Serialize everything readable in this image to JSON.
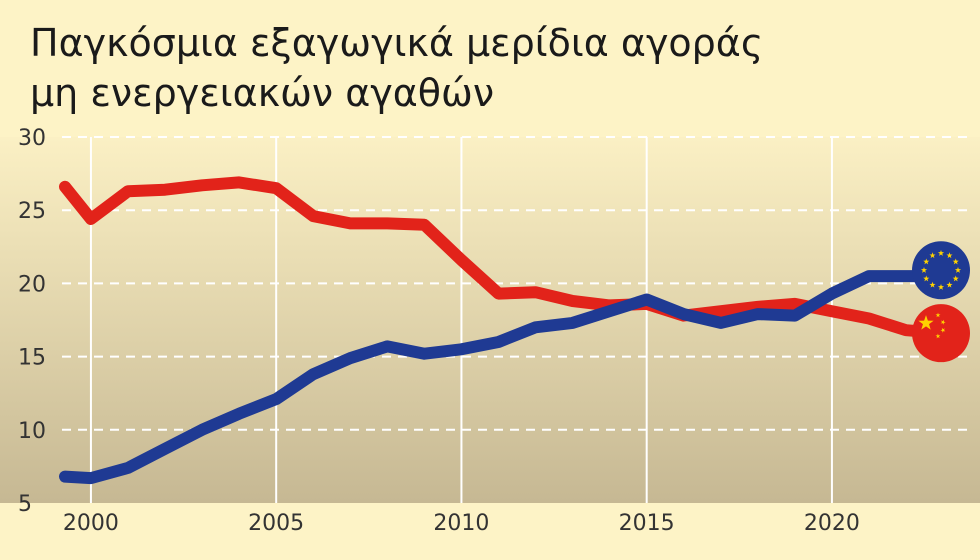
{
  "title_lines": [
    "Παγκόσμια εξαγωγικά μερίδια αγοράς",
    "μη ενεργειακών αγαθών"
  ],
  "chart_data": {
    "type": "line",
    "title": "Παγκόσμια εξαγωγικά μερίδια αγοράς μη ενεργειακών αγαθών",
    "xlabel": "",
    "ylabel": "",
    "xlim": [
      1999.2,
      2024.6
    ],
    "ylim": [
      5,
      30
    ],
    "y_ticks": [
      5,
      10,
      15,
      20,
      25,
      30
    ],
    "x_ticks": [
      2000,
      2005,
      2010,
      2015,
      2020
    ],
    "grid": true,
    "legend": "flag icons at line ends",
    "series": [
      {
        "color": "#e2231a",
        "flag": "eu-flag-icon",
        "x": [
          1999.3,
          2000,
          2001,
          2002,
          2003,
          2004,
          2005,
          2006,
          2007,
          2008,
          2009,
          2010,
          2011,
          2012,
          2013,
          2014,
          2015,
          2016,
          2017,
          2018,
          2019,
          2020,
          2021,
          2022,
          2023
        ],
        "values": [
          26.6,
          24.4,
          26.3,
          26.4,
          26.7,
          26.9,
          26.5,
          24.6,
          24.1,
          24.1,
          24.0,
          21.6,
          19.3,
          19.4,
          18.8,
          18.5,
          18.6,
          17.8,
          18.1,
          18.4,
          18.6,
          18.1,
          17.6,
          16.8,
          16.6
        ]
      },
      {
        "color": "#1f3a93",
        "flag": "china-flag-icon",
        "x": [
          1999.3,
          2000,
          2001,
          2002,
          2003,
          2004,
          2005,
          2006,
          2007,
          2008,
          2009,
          2010,
          2011,
          2012,
          2013,
          2014,
          2015,
          2016,
          2017,
          2018,
          2019,
          2020,
          2021,
          2022,
          2023
        ],
        "values": [
          6.8,
          6.7,
          7.4,
          8.7,
          10.0,
          11.1,
          12.1,
          13.8,
          14.9,
          15.7,
          15.2,
          15.5,
          16.0,
          17.0,
          17.3,
          18.1,
          18.9,
          17.9,
          17.3,
          17.9,
          17.8,
          19.3,
          20.5,
          20.5,
          20.5
        ]
      }
    ]
  },
  "colors": {
    "background": "#fdf3c6",
    "plot_top": "#fbf0c4",
    "plot_bottom": "#c6b893",
    "grid": "#ffffff",
    "series_red": "#e2231a",
    "series_blue": "#1f3a93",
    "eu_star": "#ffd200",
    "china_star": "#ffd200"
  }
}
